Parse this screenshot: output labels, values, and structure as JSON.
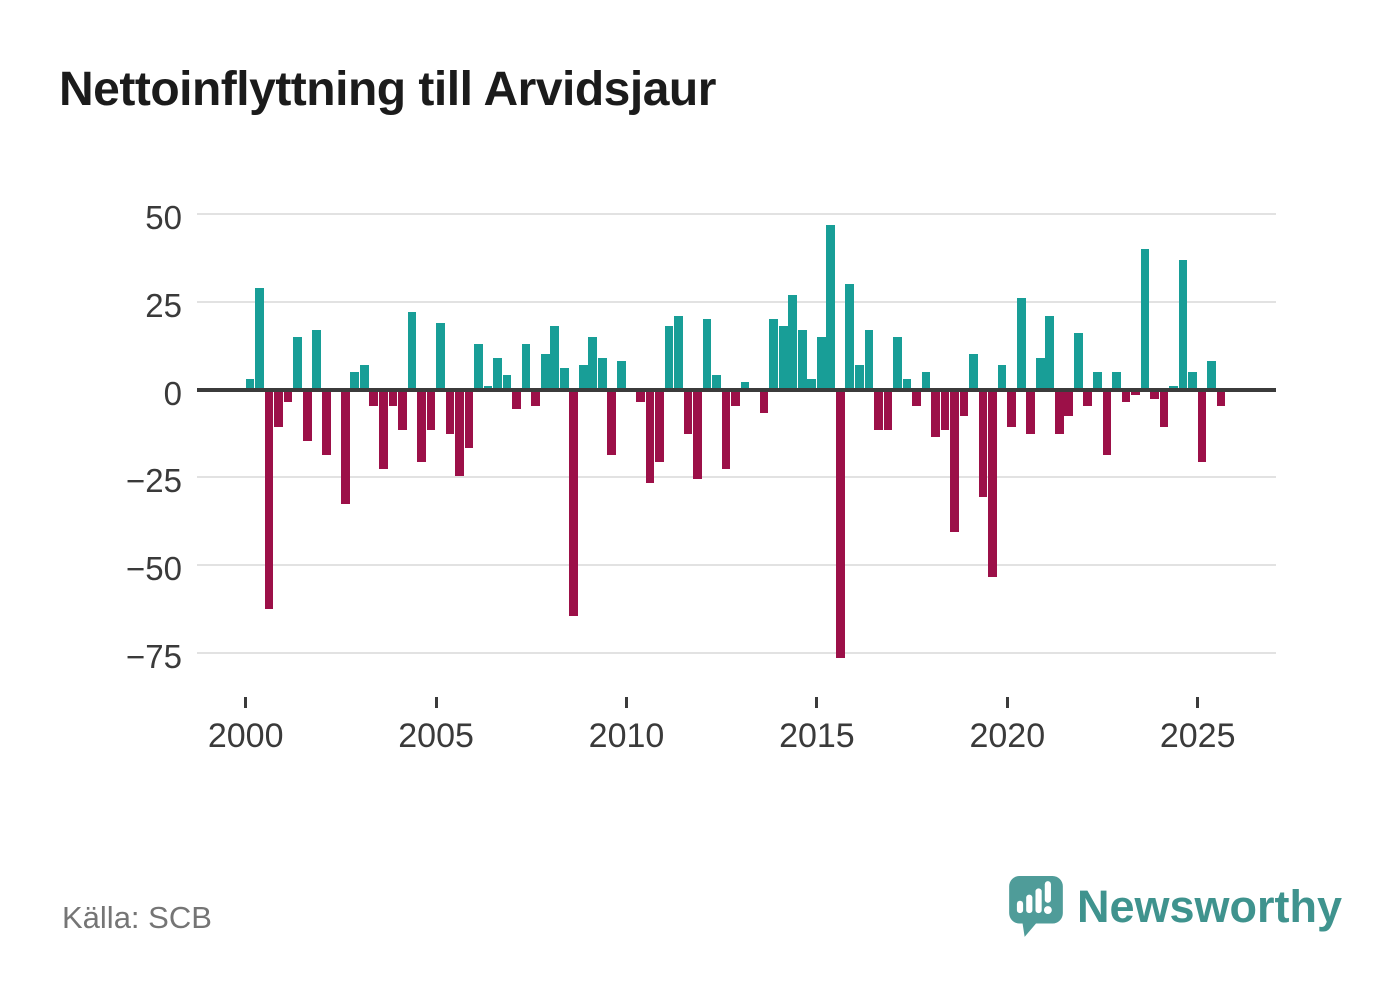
{
  "title": "Nettoinflyttning till Arvidsjaur",
  "source": "Källa: SCB",
  "branding": {
    "logo_text": "Newsworthy",
    "logo_icon": "newsworthy-speech-bubble-barchart-icon"
  },
  "colors": {
    "positive": "#189e97",
    "negative": "#9c1048",
    "zero_line": "#3b3b3b",
    "grid": "#e2e2e2",
    "axis_text": "#3a3a3a",
    "title_text": "#1b1b1b",
    "source_text": "#757575",
    "logo_teal": "#3f938e",
    "logo_icon_fill": "#4f9c99"
  },
  "chart_data": {
    "type": "bar",
    "title": "Nettoinflyttning till Arvidsjaur",
    "source": "Källa: SCB",
    "frequency": "quarterly",
    "x_start": "2000-Q1",
    "x_end": "2025-Q3",
    "x_tick_labels": [
      "2000",
      "2005",
      "2010",
      "2015",
      "2020",
      "2025"
    ],
    "x_ticks_every_n_bars": 20,
    "y_ticks": [
      50,
      25,
      0,
      -25,
      -50,
      -75
    ],
    "y_tick_labels": [
      "50",
      "25",
      "0",
      "−25",
      "−50",
      "−75"
    ],
    "ylim": [
      -80,
      55
    ],
    "grid": "horizontal",
    "legend": "none",
    "positive_color": "#189e97",
    "negative_color": "#9c1048",
    "series": [
      {
        "name": "Nettoinflyttning",
        "values": [
          3,
          29,
          -62,
          -10,
          -3,
          15,
          -14,
          17,
          -18,
          0,
          -32,
          5,
          7,
          -4,
          -22,
          -4,
          -11,
          22,
          -20,
          -11,
          19,
          -12,
          -24,
          -16,
          13,
          1,
          9,
          4,
          -5,
          13,
          -4,
          10,
          18,
          6,
          -64,
          7,
          15,
          9,
          -18,
          8,
          0,
          -3,
          -26,
          -20,
          18,
          21,
          -12,
          -25,
          20,
          4,
          -22,
          -4,
          2,
          0,
          -6,
          20,
          18,
          27,
          17,
          3,
          15,
          47,
          -76,
          30,
          7,
          17,
          -11,
          -11,
          15,
          3,
          -4,
          5,
          -13,
          -11,
          -40,
          -7,
          10,
          -30,
          -53,
          7,
          -10,
          26,
          -12,
          9,
          21,
          -12,
          -7,
          16,
          -4,
          5,
          -18,
          5,
          -3,
          -1,
          40,
          -2,
          -10,
          1,
          37,
          5,
          -20,
          8,
          -4
        ]
      }
    ]
  }
}
